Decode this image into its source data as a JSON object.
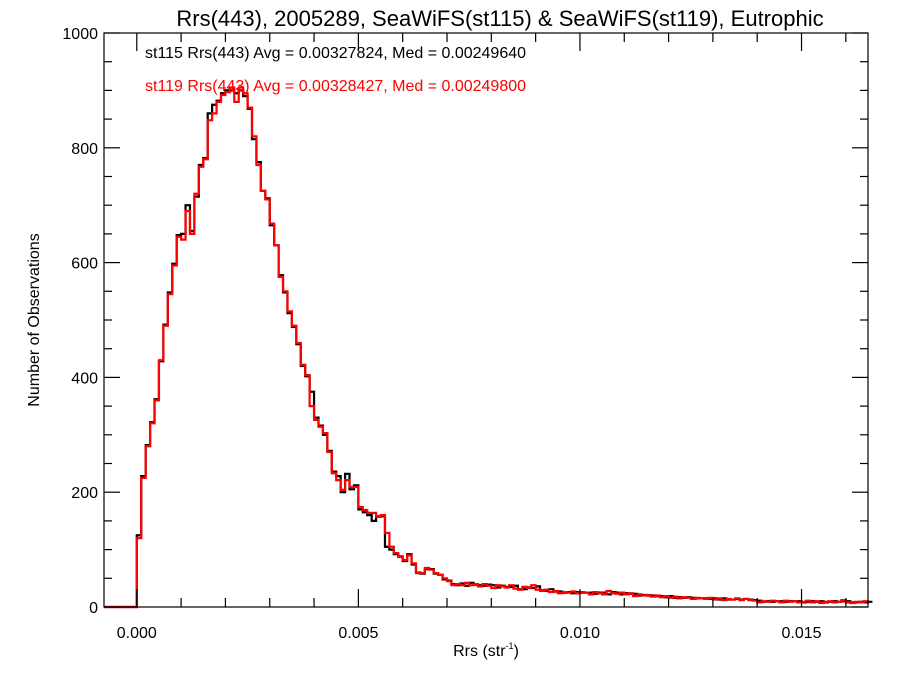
{
  "chart_data": {
    "type": "histogram-step",
    "title": "Rrs(443), 2005289, SeaWiFS(st115) & SeaWiFS(st119), Eutrophic",
    "xlabel": "Rrs (str",
    "xlabel_sup": "-1",
    "xlabel_close": ")",
    "ylabel": "Number of Observations",
    "xlim": [
      -0.00074,
      0.0165
    ],
    "ylim": [
      0,
      1000
    ],
    "xticks": [
      {
        "value": 0.0,
        "label": "0.000"
      },
      {
        "value": 0.005,
        "label": "0.005"
      },
      {
        "value": 0.01,
        "label": "0.010"
      },
      {
        "value": 0.015,
        "label": "0.015"
      }
    ],
    "x_minor_step": 0.001,
    "yticks": [
      {
        "value": 0,
        "label": "0"
      },
      {
        "value": 200,
        "label": "200"
      },
      {
        "value": 400,
        "label": "400"
      },
      {
        "value": 600,
        "label": "600"
      },
      {
        "value": 800,
        "label": "800"
      },
      {
        "value": 1000,
        "label": "1000"
      }
    ],
    "y_minor_step": 50,
    "grid": false,
    "bin_start": 0.0,
    "bin_width": 0.0001,
    "legend": [
      {
        "text": "st115 Rrs(443) Avg = 0.00327824, Med = 0.00249640",
        "color": "#000000"
      },
      {
        "text": "st119 Rrs(443) Avg = 0.00328427, Med = 0.00249800",
        "color": "#ff0000"
      }
    ],
    "series": [
      {
        "name": "st115",
        "color": "#000000",
        "values": [
          125,
          228,
          282,
          322,
          362,
          428,
          492,
          548,
          598,
          648,
          650,
          700,
          655,
          715,
          770,
          782,
          860,
          875,
          882,
          895,
          900,
          900,
          895,
          900,
          890,
          868,
          815,
          775,
          725,
          712,
          665,
          630,
          578,
          548,
          512,
          488,
          458,
          420,
          402,
          375,
          330,
          316,
          300,
          272,
          236,
          228,
          200,
          232,
          205,
          212,
          170,
          165,
          160,
          150,
          158,
          158,
          105,
          100,
          92,
          88,
          80,
          92,
          74,
          60,
          58,
          66,
          66,
          58,
          56,
          48,
          46,
          40,
          38,
          41,
          37,
          42,
          39,
          38,
          37,
          39,
          38,
          34,
          37,
          35,
          35,
          37,
          31,
          31,
          34,
          33,
          36,
          29,
          28,
          31,
          27,
          27,
          25,
          26,
          24,
          26,
          25,
          25,
          25,
          23,
          25,
          25,
          22,
          26,
          25,
          22,
          24,
          23,
          23,
          20,
          21,
          20,
          20,
          19,
          19,
          17,
          19,
          16,
          17,
          16,
          17,
          16,
          15,
          15,
          15,
          14,
          15,
          13,
          15,
          13,
          13,
          14,
          13,
          14,
          13,
          12,
          11,
          9,
          10,
          9,
          10,
          10,
          9,
          10,
          10,
          10,
          8,
          9,
          10,
          9,
          10,
          8,
          9,
          10,
          9,
          10,
          10,
          8,
          8,
          9,
          8,
          9,
          9
        ]
      },
      {
        "name": "st119",
        "color": "#ff0000",
        "values": [
          120,
          225,
          280,
          320,
          360,
          430,
          490,
          545,
          595,
          645,
          640,
          690,
          650,
          720,
          767,
          780,
          848,
          860,
          880,
          892,
          897,
          905,
          880,
          905,
          895,
          870,
          820,
          770,
          725,
          710,
          668,
          630,
          575,
          550,
          515,
          490,
          460,
          422,
          404,
          350,
          326,
          314,
          303,
          270,
          233,
          221,
          204,
          221,
          209,
          209,
          174,
          169,
          164,
          164,
          157,
          160,
          129,
          105,
          94,
          87,
          82,
          90,
          76,
          59,
          59,
          68,
          65,
          59,
          56,
          50,
          45,
          38,
          40,
          38,
          42,
          38,
          40,
          36,
          40,
          37,
          33,
          38,
          36,
          34,
          38,
          32,
          30,
          35,
          33,
          38,
          30,
          28,
          30,
          26,
          28,
          24,
          26,
          25,
          27,
          24,
          26,
          25,
          22,
          26,
          24,
          22,
          28,
          24,
          23,
          25,
          22,
          24,
          19,
          22,
          20,
          21,
          18,
          20,
          17,
          19,
          16,
          18,
          15,
          17,
          16,
          14,
          16,
          15,
          14,
          16,
          13,
          15,
          12,
          14,
          13,
          15,
          12,
          14,
          12,
          11,
          8,
          10,
          9,
          11,
          10,
          8,
          11,
          9,
          10,
          8,
          9,
          11,
          8,
          10,
          7,
          9,
          10,
          8,
          9,
          12,
          8,
          7,
          9,
          8,
          10,
          9
        ]
      }
    ]
  }
}
